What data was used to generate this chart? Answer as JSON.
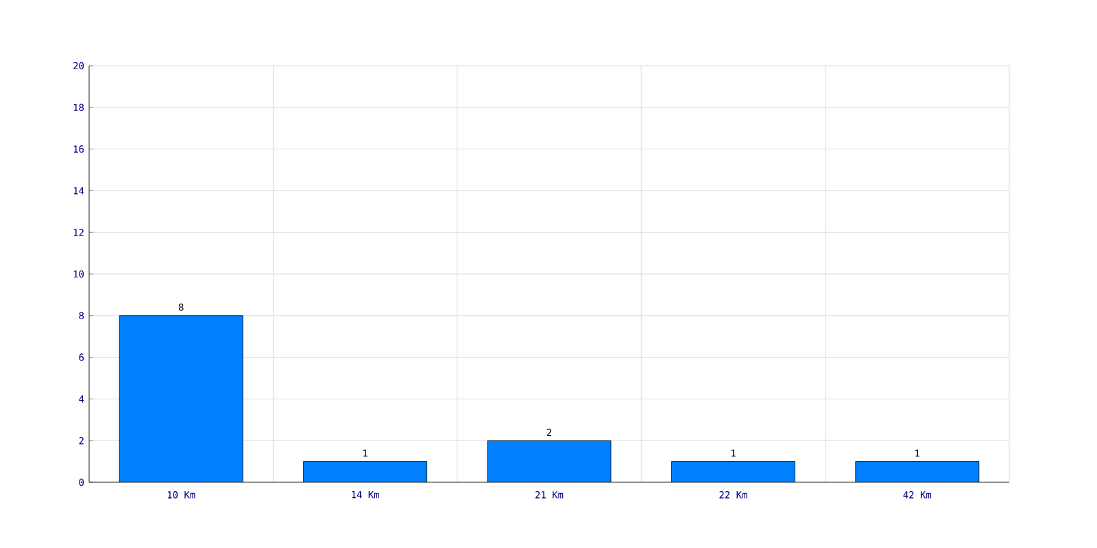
{
  "chart_data": {
    "type": "bar",
    "categories": [
      "10 Km",
      "14 Km",
      "21 Km",
      "22 Km",
      "42 Km"
    ],
    "values": [
      8,
      1,
      2,
      1,
      1
    ],
    "color": "#0080ff",
    "ylim": [
      0,
      20
    ],
    "yticks": [
      0,
      2,
      4,
      6,
      8,
      10,
      12,
      14,
      16,
      18,
      20
    ],
    "grid": true,
    "data_labels": true
  }
}
